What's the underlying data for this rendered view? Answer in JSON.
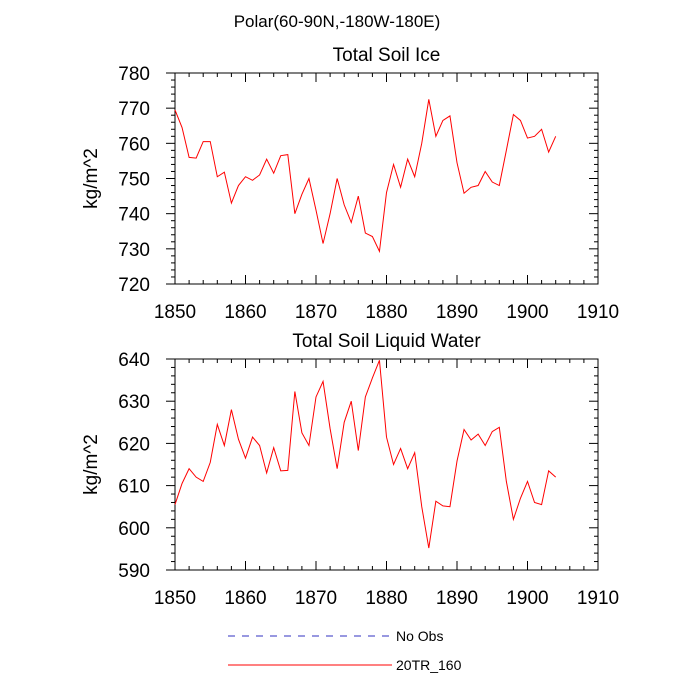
{
  "figure": {
    "title": "Polar(60-90N,-180W-180E)"
  },
  "chart_data": [
    {
      "type": "line",
      "title": "Total Soil Ice",
      "xlabel": "",
      "ylabel": "kg/m^2",
      "xlim": [
        1850,
        1910
      ],
      "ylim": [
        720,
        780
      ],
      "xticks": [
        1850,
        1860,
        1870,
        1880,
        1890,
        1900,
        1910
      ],
      "yticks": [
        720,
        730,
        740,
        750,
        760,
        770,
        780
      ],
      "grid": false,
      "series": [
        {
          "name": "20TR_160",
          "color": "#ff0000",
          "x": [
            1850,
            1851,
            1852,
            1853,
            1854,
            1855,
            1856,
            1857,
            1858,
            1859,
            1860,
            1861,
            1862,
            1863,
            1864,
            1865,
            1866,
            1867,
            1868,
            1869,
            1870,
            1871,
            1872,
            1873,
            1874,
            1875,
            1876,
            1877,
            1878,
            1879,
            1880,
            1881,
            1882,
            1883,
            1884,
            1885,
            1886,
            1887,
            1888,
            1889,
            1890,
            1891,
            1892,
            1893,
            1894,
            1895,
            1896,
            1897,
            1898,
            1899,
            1900,
            1901,
            1902,
            1903,
            1904
          ],
          "y": [
            769.5,
            764.5,
            756,
            755.8,
            760.5,
            760.5,
            750.5,
            751.8,
            743,
            748,
            750.5,
            749.5,
            751,
            755.5,
            751.5,
            756.5,
            756.8,
            740,
            745.5,
            750,
            741,
            731.5,
            740,
            750,
            742.5,
            737.5,
            745,
            734.5,
            733.5,
            729.3,
            746,
            754,
            747.5,
            755.5,
            750.5,
            760,
            772.5,
            762,
            766.5,
            767.8,
            754.5,
            745.8,
            747.5,
            748,
            752,
            749,
            748,
            758,
            768.2,
            766.5,
            761.5,
            762,
            764,
            757.5,
            762
          ]
        }
      ]
    },
    {
      "type": "line",
      "title": "Total Soil Liquid Water",
      "xlabel": "",
      "ylabel": "kg/m^2",
      "xlim": [
        1850,
        1910
      ],
      "ylim": [
        590,
        640
      ],
      "xticks": [
        1850,
        1860,
        1870,
        1880,
        1890,
        1900,
        1910
      ],
      "yticks": [
        590,
        600,
        610,
        620,
        630,
        640
      ],
      "grid": false,
      "series": [
        {
          "name": "20TR_160",
          "color": "#ff0000",
          "x": [
            1850,
            1851,
            1852,
            1853,
            1854,
            1855,
            1856,
            1857,
            1858,
            1859,
            1860,
            1861,
            1862,
            1863,
            1864,
            1865,
            1866,
            1867,
            1868,
            1869,
            1870,
            1871,
            1872,
            1873,
            1874,
            1875,
            1876,
            1877,
            1878,
            1879,
            1880,
            1881,
            1882,
            1883,
            1884,
            1885,
            1886,
            1887,
            1888,
            1889,
            1890,
            1891,
            1892,
            1893,
            1894,
            1895,
            1896,
            1897,
            1898,
            1899,
            1900,
            1901,
            1902,
            1903,
            1904
          ],
          "y": [
            605.5,
            610.5,
            614,
            612,
            611,
            615.5,
            624.5,
            619.5,
            628,
            621,
            616.5,
            621.5,
            619.5,
            613,
            619,
            613.5,
            613.6,
            632.3,
            622.5,
            619.5,
            631,
            634.7,
            623.5,
            614,
            625,
            630,
            618.3,
            631,
            635.5,
            639.7,
            621.5,
            615,
            618.8,
            614,
            617.8,
            605,
            595.2,
            606.3,
            605.2,
            605,
            615.8,
            623.3,
            620.8,
            622.2,
            619.5,
            622.8,
            623.8,
            611,
            602,
            607,
            611,
            606,
            605.5,
            613.5,
            612
          ]
        }
      ]
    }
  ],
  "legend": {
    "placement": "bottom-center",
    "entries": [
      {
        "label": "No Obs",
        "color": "#3030c0",
        "style": "dashed"
      },
      {
        "label": "20TR_160",
        "color": "#ff0000",
        "style": "solid"
      }
    ]
  }
}
